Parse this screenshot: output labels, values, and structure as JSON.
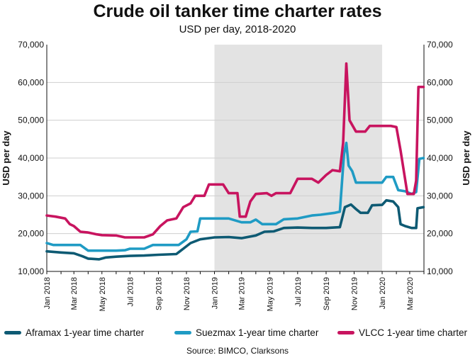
{
  "header": {
    "title": "Crude oil tanker time charter rates",
    "subtitle": "USD per day, 2018-2020"
  },
  "source": "Source: BIMCO, Clarksons",
  "chart_data": {
    "type": "line",
    "title": "Crude oil tanker time charter rates",
    "subtitle": "USD per day, 2018-2020",
    "ylabel": "USD per day",
    "ylabel_right": "USD per day",
    "xlabel": "",
    "ylim": [
      10000,
      70000
    ],
    "y_ticks": [
      "10,000",
      "20,000",
      "30,000",
      "40,000",
      "50,000",
      "60,000",
      "70,000"
    ],
    "x_range": [
      "2018-01",
      "2020-03"
    ],
    "x_ticks": [
      "Jan 2018",
      "Mar 2018",
      "May 2018",
      "Jul 2018",
      "Sep 2018",
      "Nov 2018",
      "Jan 2019",
      "Mar 2019",
      "May 2019",
      "Jul 2019",
      "Sep 2019",
      "Nov 2019",
      "Jan 2020",
      "Mar 2020"
    ],
    "shaded_region": {
      "from": "2019-01",
      "to": "2020-01",
      "color": "#e3e3e3"
    },
    "grid": "horizontal",
    "legend_position": "bottom",
    "series": [
      {
        "name": "Aframax 1-year time charter",
        "color": "#0e5a73",
        "points": [
          [
            "2018-01-01",
            15300
          ],
          [
            "2018-02-01",
            15000
          ],
          [
            "2018-03-01",
            14800
          ],
          [
            "2018-03-20",
            14000
          ],
          [
            "2018-04-01",
            13400
          ],
          [
            "2018-04-25",
            13200
          ],
          [
            "2018-05-10",
            13700
          ],
          [
            "2018-06-01",
            13900
          ],
          [
            "2018-07-01",
            14100
          ],
          [
            "2018-08-01",
            14200
          ],
          [
            "2018-09-01",
            14400
          ],
          [
            "2018-10-10",
            14600
          ],
          [
            "2018-10-25",
            16000
          ],
          [
            "2018-11-10",
            17500
          ],
          [
            "2018-12-01",
            18500
          ],
          [
            "2019-01-01",
            19000
          ],
          [
            "2019-02-01",
            19100
          ],
          [
            "2019-03-01",
            18800
          ],
          [
            "2019-04-01",
            19500
          ],
          [
            "2019-04-20",
            20500
          ],
          [
            "2019-05-10",
            20600
          ],
          [
            "2019-06-01",
            21500
          ],
          [
            "2019-07-01",
            21600
          ],
          [
            "2019-08-01",
            21500
          ],
          [
            "2019-09-01",
            21500
          ],
          [
            "2019-10-01",
            21700
          ],
          [
            "2019-10-12",
            27000
          ],
          [
            "2019-10-25",
            27700
          ],
          [
            "2019-11-05",
            26500
          ],
          [
            "2019-11-15",
            25500
          ],
          [
            "2019-12-01",
            25500
          ],
          [
            "2019-12-10",
            27500
          ],
          [
            "2020-01-01",
            27600
          ],
          [
            "2020-01-10",
            28800
          ],
          [
            "2020-01-25",
            28500
          ],
          [
            "2020-02-05",
            27000
          ],
          [
            "2020-02-10",
            22500
          ],
          [
            "2020-02-20",
            22000
          ],
          [
            "2020-03-05",
            21500
          ],
          [
            "2020-03-15",
            21500
          ],
          [
            "2020-03-18",
            26700
          ],
          [
            "2020-03-31",
            27000
          ]
        ]
      },
      {
        "name": "Suezmax 1-year time charter",
        "color": "#1f9bc4",
        "points": [
          [
            "2018-01-01",
            17500
          ],
          [
            "2018-01-15",
            17000
          ],
          [
            "2018-02-15",
            17000
          ],
          [
            "2018-03-15",
            17000
          ],
          [
            "2018-04-01",
            15500
          ],
          [
            "2018-05-01",
            15500
          ],
          [
            "2018-06-01",
            15500
          ],
          [
            "2018-06-20",
            15600
          ],
          [
            "2018-07-01",
            16000
          ],
          [
            "2018-08-01",
            16000
          ],
          [
            "2018-08-20",
            17000
          ],
          [
            "2018-10-15",
            17000
          ],
          [
            "2018-11-01",
            18500
          ],
          [
            "2018-11-10",
            20500
          ],
          [
            "2018-11-25",
            20600
          ],
          [
            "2018-12-01",
            24000
          ],
          [
            "2019-01-01",
            24000
          ],
          [
            "2019-02-01",
            24000
          ],
          [
            "2019-03-01",
            23000
          ],
          [
            "2019-03-20",
            23000
          ],
          [
            "2019-04-01",
            23700
          ],
          [
            "2019-04-15",
            22500
          ],
          [
            "2019-05-15",
            22500
          ],
          [
            "2019-06-01",
            23800
          ],
          [
            "2019-07-01",
            24000
          ],
          [
            "2019-08-01",
            24800
          ],
          [
            "2019-08-20",
            25000
          ],
          [
            "2019-09-20",
            25500
          ],
          [
            "2019-10-01",
            25800
          ],
          [
            "2019-10-10",
            41000
          ],
          [
            "2019-10-15",
            44000
          ],
          [
            "2019-10-20",
            38000
          ],
          [
            "2019-10-28",
            36500
          ],
          [
            "2019-11-05",
            33500
          ],
          [
            "2019-12-01",
            33500
          ],
          [
            "2020-01-01",
            33500
          ],
          [
            "2020-01-10",
            35000
          ],
          [
            "2020-01-25",
            35000
          ],
          [
            "2020-02-05",
            31500
          ],
          [
            "2020-02-20",
            31200
          ],
          [
            "2020-03-05",
            30500
          ],
          [
            "2020-03-15",
            31000
          ],
          [
            "2020-03-22",
            39800
          ],
          [
            "2020-03-31",
            40000
          ]
        ]
      },
      {
        "name": "VLCC 1-year time charter",
        "color": "#c8145f",
        "points": [
          [
            "2018-01-01",
            24800
          ],
          [
            "2018-01-20",
            24500
          ],
          [
            "2018-02-10",
            24000
          ],
          [
            "2018-02-20",
            22500
          ],
          [
            "2018-03-01",
            22000
          ],
          [
            "2018-03-15",
            20500
          ],
          [
            "2018-04-01",
            20300
          ],
          [
            "2018-04-20",
            19800
          ],
          [
            "2018-05-01",
            19600
          ],
          [
            "2018-06-01",
            19500
          ],
          [
            "2018-06-20",
            19000
          ],
          [
            "2018-07-15",
            19000
          ],
          [
            "2018-08-01",
            19000
          ],
          [
            "2018-08-20",
            19800
          ],
          [
            "2018-09-05",
            22000
          ],
          [
            "2018-09-20",
            23500
          ],
          [
            "2018-10-10",
            24000
          ],
          [
            "2018-10-25",
            27000
          ],
          [
            "2018-11-10",
            28000
          ],
          [
            "2018-11-20",
            30000
          ],
          [
            "2018-12-10",
            30000
          ],
          [
            "2018-12-20",
            33000
          ],
          [
            "2019-01-20",
            33000
          ],
          [
            "2019-02-01",
            30700
          ],
          [
            "2019-02-20",
            30700
          ],
          [
            "2019-02-25",
            24500
          ],
          [
            "2019-03-10",
            24500
          ],
          [
            "2019-03-20",
            28500
          ],
          [
            "2019-04-01",
            30500
          ],
          [
            "2019-04-25",
            30700
          ],
          [
            "2019-05-05",
            30000
          ],
          [
            "2019-05-15",
            30700
          ],
          [
            "2019-06-15",
            30700
          ],
          [
            "2019-07-01",
            34500
          ],
          [
            "2019-08-01",
            34500
          ],
          [
            "2019-08-15",
            33500
          ],
          [
            "2019-09-01",
            35500
          ],
          [
            "2019-09-15",
            36800
          ],
          [
            "2019-10-01",
            36500
          ],
          [
            "2019-10-08",
            44000
          ],
          [
            "2019-10-15",
            65000
          ],
          [
            "2019-10-22",
            50000
          ],
          [
            "2019-11-05",
            47000
          ],
          [
            "2019-11-25",
            47000
          ],
          [
            "2019-12-05",
            48500
          ],
          [
            "2020-01-01",
            48500
          ],
          [
            "2020-01-20",
            48500
          ],
          [
            "2020-02-01",
            48200
          ],
          [
            "2020-02-10",
            42000
          ],
          [
            "2020-02-25",
            30500
          ],
          [
            "2020-03-10",
            30500
          ],
          [
            "2020-03-15",
            34000
          ],
          [
            "2020-03-20",
            58800
          ],
          [
            "2020-03-31",
            58800
          ]
        ]
      }
    ]
  }
}
